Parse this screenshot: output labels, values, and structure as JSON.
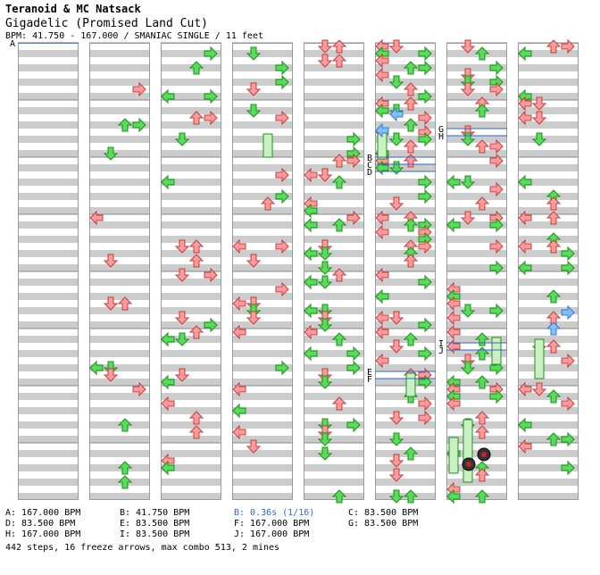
{
  "song": {
    "artist": "Teranoid & MC Natsack",
    "title": "Gigadelic (Promised Land Cut)",
    "info": "BPM: 41.750 - 167.000 / SMANIAC SINGLE / 11 feet"
  },
  "colors": {
    "arrow_red": "#ff9a9a",
    "arrow_red_edge": "#c04040",
    "arrow_green": "#55dd55",
    "arrow_green_edge": "#1f8f1f",
    "arrow_blue": "#7fbfff",
    "freeze": "#c8f0c0",
    "stripe": "#cccccc",
    "marker_line": "#3366cc",
    "mine_red": "#cc2222"
  },
  "chart_markers": [
    "A",
    "B",
    "C",
    "D",
    "E",
    "F",
    "G",
    "H",
    "I",
    "J"
  ],
  "legend": [
    {
      "key": "A",
      "text": "A: 167.000 BPM",
      "highlight": false
    },
    {
      "key": "B",
      "text": "B: 41.750 BPM",
      "highlight": false
    },
    {
      "key": "Bstop",
      "text": "B: 0.36s (1/16)",
      "highlight": true
    },
    {
      "key": "C",
      "text": "C: 83.500 BPM",
      "highlight": false
    },
    {
      "key": "D",
      "text": "D: 83.500 BPM",
      "highlight": false
    },
    {
      "key": "E",
      "text": "E: 83.500 BPM",
      "highlight": false
    },
    {
      "key": "F",
      "text": "F: 167.000 BPM",
      "highlight": false
    },
    {
      "key": "G",
      "text": "G: 83.500 BPM",
      "highlight": false
    },
    {
      "key": "H",
      "text": "H: 167.000 BPM",
      "highlight": false
    },
    {
      "key": "I",
      "text": "I: 83.500 BPM",
      "highlight": false
    },
    {
      "key": "J",
      "text": "J: 167.000 BPM",
      "highlight": false
    }
  ],
  "footer": "442 steps, 16 freeze arrows, max combo 513, 2 mines"
}
